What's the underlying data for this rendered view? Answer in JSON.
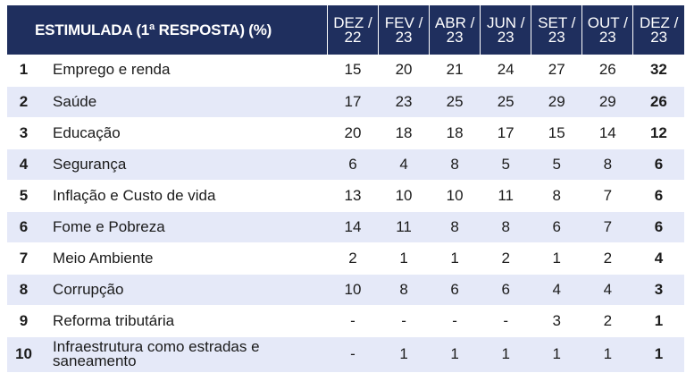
{
  "table": {
    "title": "ESTIMULADA (1ª RESPOSTA) (%)",
    "periods": [
      {
        "month": "DEZ /",
        "year": "22"
      },
      {
        "month": "FEV /",
        "year": "23"
      },
      {
        "month": "ABR /",
        "year": "23"
      },
      {
        "month": "JUN /",
        "year": "23"
      },
      {
        "month": "SET /",
        "year": "23"
      },
      {
        "month": "OUT /",
        "year": "23"
      },
      {
        "month": "DEZ /",
        "year": "23"
      }
    ],
    "rows": [
      {
        "rank": "1",
        "label": "Emprego e renda",
        "values": [
          "15",
          "20",
          "21",
          "24",
          "27",
          "26",
          "32"
        ]
      },
      {
        "rank": "2",
        "label": "Saúde",
        "values": [
          "17",
          "23",
          "25",
          "25",
          "29",
          "29",
          "26"
        ]
      },
      {
        "rank": "3",
        "label": "Educação",
        "values": [
          "20",
          "18",
          "18",
          "17",
          "15",
          "14",
          "12"
        ]
      },
      {
        "rank": "4",
        "label": "Segurança",
        "values": [
          "6",
          "4",
          "8",
          "5",
          "5",
          "8",
          "6"
        ]
      },
      {
        "rank": "5",
        "label": "Inflação e Custo de vida",
        "values": [
          "13",
          "10",
          "10",
          "11",
          "8",
          "7",
          "6"
        ]
      },
      {
        "rank": "6",
        "label": "Fome e Pobreza",
        "values": [
          "14",
          "11",
          "8",
          "8",
          "6",
          "7",
          "6"
        ]
      },
      {
        "rank": "7",
        "label": "Meio Ambiente",
        "values": [
          "2",
          "1",
          "1",
          "2",
          "1",
          "2",
          "4"
        ]
      },
      {
        "rank": "8",
        "label": "Corrupção",
        "values": [
          "10",
          "8",
          "6",
          "6",
          "4",
          "4",
          "3"
        ]
      },
      {
        "rank": "9",
        "label": "Reforma tributária",
        "values": [
          "-",
          "-",
          "-",
          "-",
          "3",
          "2",
          "1"
        ]
      },
      {
        "rank": "10",
        "label": "Infraestrutura como estradas e saneamento",
        "values": [
          "-",
          "1",
          "1",
          "1",
          "1",
          "1",
          "1"
        ]
      }
    ]
  },
  "colors": {
    "header_bg": "#1f2f5e",
    "header_text": "#ffffff",
    "stripe_bg": "#e5e9f8",
    "row_bg": "#ffffff"
  }
}
